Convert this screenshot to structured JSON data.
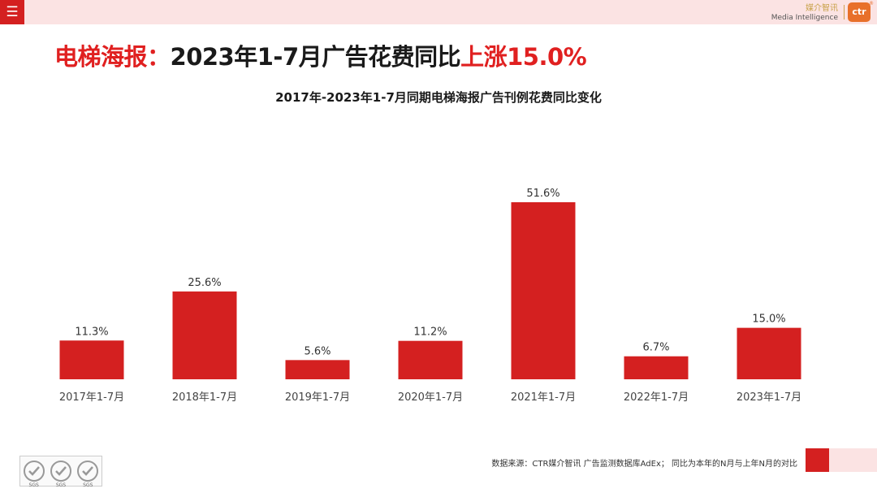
{
  "header": {
    "menu_icon": "hamburger-menu-icon",
    "brand_cn": "媒介智讯",
    "brand_en": "Media Intelligence",
    "logo_text": "ctr",
    "logo_mark": "®"
  },
  "headline": {
    "part1": "电梯海报：",
    "part2": "2023年1-7月广告花费同比",
    "part3": "上涨15.0%"
  },
  "footer": {
    "source": "数据来源：CTR媒介智讯 广告监测数据库AdEx； 同比为本年的N月与上年N月的对比",
    "badges": [
      "SGS",
      "SGS",
      "SGS"
    ]
  },
  "colors": {
    "bar": "#d42020",
    "accent_red": "#e02020",
    "pink": "#fbe3e3"
  },
  "chart_data": {
    "type": "bar",
    "title": "2017年-2023年1-7月同期电梯海报广告刊例花费同比变化",
    "categories": [
      "2017年1-7月",
      "2018年1-7月",
      "2019年1-7月",
      "2020年1-7月",
      "2021年1-7月",
      "2022年1-7月",
      "2023年1-7月"
    ],
    "values": [
      11.3,
      25.6,
      5.6,
      11.2,
      51.6,
      6.7,
      15.0
    ],
    "labels": [
      "11.3%",
      "25.6%",
      "5.6%",
      "11.2%",
      "51.6%",
      "6.7%",
      "15.0%"
    ],
    "unit": "%",
    "xlabel": "",
    "ylabel": "",
    "ylim": [
      0,
      51.6
    ],
    "grid": false,
    "legend": "none"
  }
}
